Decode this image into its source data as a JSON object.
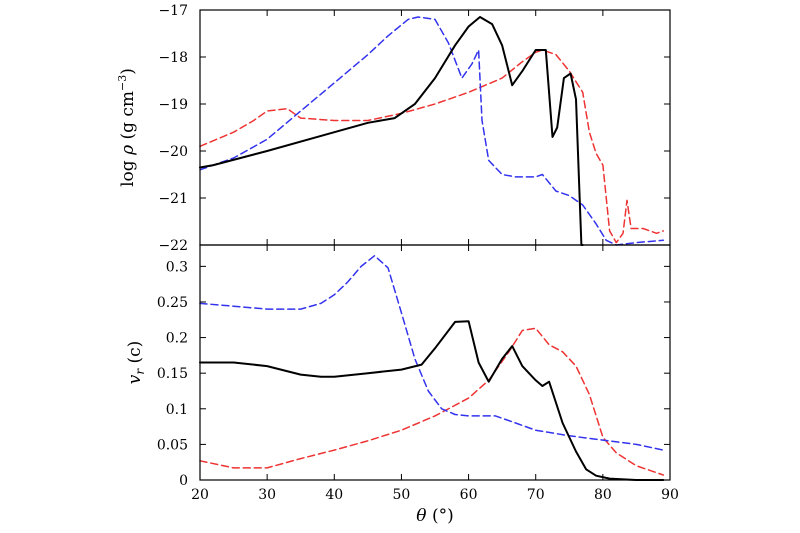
{
  "chart_data": [
    {
      "type": "line",
      "panel": "top",
      "xlim": [
        20,
        90
      ],
      "ylim": [
        -22,
        -17
      ],
      "yticks": [
        -22,
        -21,
        -20,
        -19,
        -18,
        -17
      ],
      "ytick_labels": [
        "−22",
        "−21",
        "−20",
        "−19",
        "−18",
        "−17"
      ],
      "ylabel_parts": {
        "func": "log",
        "var": "ρ",
        "unit_open": "(g cm",
        "exp": "−3",
        "unit_close": ")"
      },
      "grid": false,
      "series": [
        {
          "color": "#000000",
          "style": "solid",
          "width": 2,
          "x": [
            20,
            22,
            30,
            40,
            45,
            49,
            52,
            55,
            58,
            60,
            61.7,
            63.5,
            65,
            66.5,
            68,
            70,
            71.5,
            72.5,
            73.2,
            74.2,
            75.2,
            76,
            76.8,
            77
          ],
          "y": [
            -20.35,
            -20.3,
            -20.0,
            -19.6,
            -19.4,
            -19.3,
            -19.0,
            -18.45,
            -17.75,
            -17.35,
            -17.15,
            -17.3,
            -17.75,
            -18.6,
            -18.3,
            -17.85,
            -17.85,
            -19.7,
            -19.5,
            -18.45,
            -18.35,
            -18.9,
            -22.0,
            -22.0
          ]
        },
        {
          "color": "#3333ee",
          "style": "dashed",
          "width": 1.5,
          "x": [
            20,
            25,
            30,
            35,
            40,
            45,
            48,
            51,
            52.5,
            55,
            57,
            59,
            60.5,
            61.5,
            62,
            63,
            65,
            67,
            70,
            71,
            73,
            75,
            77,
            79,
            80.5,
            82,
            85,
            89
          ],
          "y": [
            -20.4,
            -20.15,
            -19.75,
            -19.15,
            -18.55,
            -17.95,
            -17.55,
            -17.2,
            -17.15,
            -17.2,
            -17.7,
            -18.45,
            -18.15,
            -17.85,
            -19.35,
            -20.2,
            -20.5,
            -20.55,
            -20.55,
            -20.5,
            -20.85,
            -20.95,
            -21.15,
            -21.55,
            -21.9,
            -22.0,
            -21.95,
            -21.9
          ]
        },
        {
          "color": "#ee3333",
          "style": "dashed",
          "width": 1.5,
          "x": [
            20,
            25,
            28,
            30,
            33,
            35,
            40,
            45,
            50,
            55,
            60,
            65,
            68,
            70,
            71,
            73,
            75,
            77,
            78,
            79,
            80,
            81,
            82,
            83,
            83.6,
            84.2,
            86,
            88,
            89
          ],
          "y": [
            -19.9,
            -19.6,
            -19.35,
            -19.15,
            -19.1,
            -19.3,
            -19.35,
            -19.35,
            -19.2,
            -19.0,
            -18.75,
            -18.45,
            -18.1,
            -17.9,
            -17.85,
            -17.95,
            -18.3,
            -18.75,
            -19.6,
            -20.05,
            -20.3,
            -21.7,
            -21.95,
            -21.75,
            -21.05,
            -21.65,
            -21.65,
            -21.75,
            -21.7
          ]
        }
      ]
    },
    {
      "type": "line",
      "panel": "bottom",
      "xlim": [
        20,
        90
      ],
      "ylim": [
        0,
        0.33
      ],
      "xticks": [
        20,
        30,
        40,
        50,
        60,
        70,
        80,
        90
      ],
      "xtick_labels": [
        "20",
        "30",
        "40",
        "50",
        "60",
        "70",
        "80",
        "90"
      ],
      "yticks": [
        0,
        0.05,
        0.1,
        0.15,
        0.2,
        0.25,
        0.3
      ],
      "ytick_labels": [
        "0",
        "0.05",
        "0.1",
        "0.15",
        "0.2",
        "0.25",
        "0.3"
      ],
      "xlabel_parts": {
        "var": "θ",
        "unit": "(°)"
      },
      "ylabel_parts": {
        "var": "v",
        "sub": "r",
        "unit": "(c)"
      },
      "grid": false,
      "series": [
        {
          "color": "#000000",
          "style": "solid",
          "width": 2,
          "x": [
            20,
            25,
            30,
            35,
            38,
            40,
            45,
            50,
            53,
            55,
            58,
            60,
            61.5,
            63,
            65,
            66.5,
            68,
            70,
            71,
            72,
            74,
            76,
            77.5,
            79,
            81,
            85,
            89
          ],
          "y": [
            0.165,
            0.165,
            0.16,
            0.148,
            0.145,
            0.145,
            0.15,
            0.155,
            0.162,
            0.185,
            0.222,
            0.223,
            0.165,
            0.138,
            0.17,
            0.188,
            0.16,
            0.14,
            0.132,
            0.138,
            0.08,
            0.04,
            0.015,
            0.006,
            0.002,
            0.0,
            0.0
          ]
        },
        {
          "color": "#3333ee",
          "style": "dashed",
          "width": 1.5,
          "x": [
            20,
            25,
            30,
            35,
            38,
            40,
            42,
            44,
            46,
            48,
            50,
            52,
            54,
            56,
            58,
            60,
            64,
            67,
            70,
            75,
            80,
            85,
            89
          ],
          "y": [
            0.248,
            0.244,
            0.24,
            0.24,
            0.248,
            0.26,
            0.278,
            0.3,
            0.315,
            0.298,
            0.235,
            0.17,
            0.125,
            0.1,
            0.092,
            0.09,
            0.09,
            0.08,
            0.07,
            0.062,
            0.056,
            0.05,
            0.042
          ]
        },
        {
          "color": "#ee3333",
          "style": "dashed",
          "width": 1.5,
          "x": [
            20,
            25,
            30,
            35,
            40,
            45,
            50,
            55,
            60,
            63,
            66,
            68,
            70,
            72,
            74,
            76,
            78,
            80,
            82,
            85,
            89
          ],
          "y": [
            0.027,
            0.017,
            0.017,
            0.03,
            0.042,
            0.055,
            0.07,
            0.09,
            0.115,
            0.14,
            0.18,
            0.21,
            0.213,
            0.19,
            0.18,
            0.16,
            0.12,
            0.06,
            0.038,
            0.02,
            0.007
          ]
        }
      ]
    }
  ]
}
